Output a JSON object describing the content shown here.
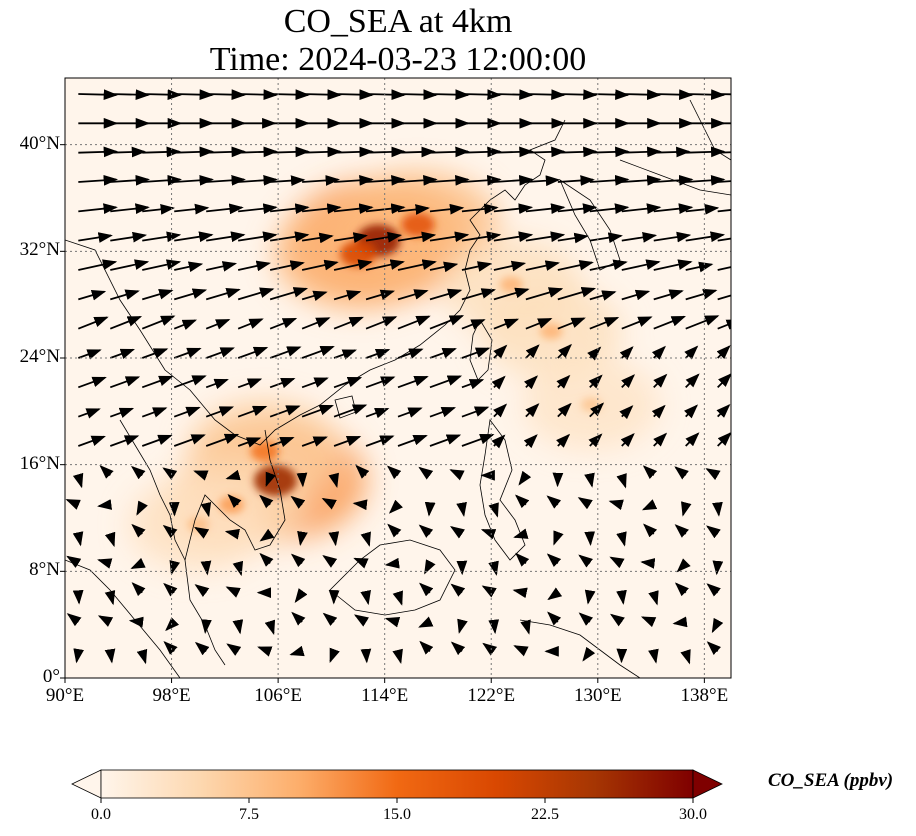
{
  "title": "CO_SEA at 4km",
  "subtitle": "Time: 2024-03-23 12:00:00",
  "map": {
    "projection": "PlateCarree",
    "lon_range": [
      90,
      140
    ],
    "lat_range": [
      0,
      45
    ],
    "lon_ticks": [
      {
        "value": 90,
        "label": "90°E"
      },
      {
        "value": 98,
        "label": "98°E"
      },
      {
        "value": 106,
        "label": "106°E"
      },
      {
        "value": 114,
        "label": "114°E"
      },
      {
        "value": 122,
        "label": "122°E"
      },
      {
        "value": 130,
        "label": "130°E"
      },
      {
        "value": 138,
        "label": "138°E"
      }
    ],
    "lat_ticks": [
      {
        "value": 0,
        "label": "0°"
      },
      {
        "value": 8,
        "label": "8°N"
      },
      {
        "value": 16,
        "label": "16°N"
      },
      {
        "value": 24,
        "label": "24°N"
      },
      {
        "value": 32,
        "label": "32°N"
      },
      {
        "value": 40,
        "label": "40°N"
      }
    ],
    "gridlines": "dotted"
  },
  "plumes": [
    {
      "lon": 113.5,
      "lat": 32.8,
      "value": 27
    },
    {
      "lon": 116.5,
      "lat": 34.0,
      "value": 18
    },
    {
      "lon": 112.0,
      "lat": 31.8,
      "value": 20
    },
    {
      "lon": 105.8,
      "lat": 14.8,
      "value": 26
    },
    {
      "lon": 105.0,
      "lat": 17.0,
      "value": 14
    },
    {
      "lon": 102.5,
      "lat": 13.0,
      "value": 11
    },
    {
      "lon": 126.5,
      "lat": 26.0,
      "value": 9
    },
    {
      "lon": 123.5,
      "lat": 29.5,
      "value": 9
    },
    {
      "lon": 129.5,
      "lat": 20.5,
      "value": 7
    },
    {
      "lon": 100.0,
      "lat": 11.5,
      "value": 8
    }
  ],
  "colorbar": {
    "label": "CO_SEA (ppbv)",
    "min": 0,
    "max": 30,
    "extend": "both",
    "ticks": [
      "0.0",
      "7.5",
      "15.0",
      "22.5",
      "30.0"
    ],
    "colors": [
      "#fff5eb",
      "#fdd8b0",
      "#fdae6b",
      "#f16913",
      "#d94801",
      "#a63603",
      "#7f0000"
    ]
  }
}
